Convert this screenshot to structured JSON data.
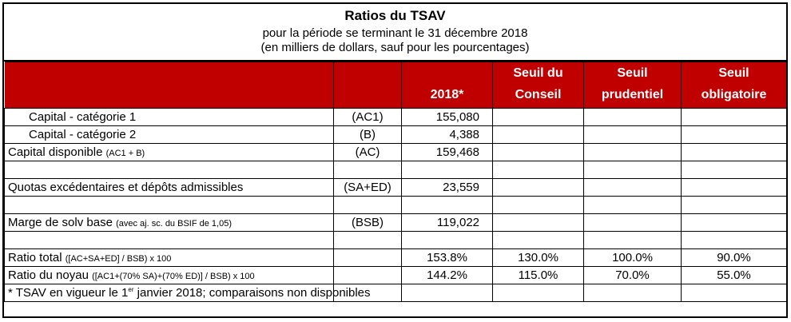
{
  "title": "Ratios du TSAV",
  "subtitle1": "pour la période se terminant le 31 décembre 2018",
  "subtitle2": "(en milliers de dollars, sauf pour les pourcentages)",
  "header": {
    "col_2018": "2018*",
    "seuil_conseil_1": "Seuil du",
    "seuil_conseil_2": "Conseil",
    "seuil_prudentiel_1": "Seuil",
    "seuil_prudentiel_2": "prudentiel",
    "seuil_obligatoire_1": "Seuil",
    "seuil_obligatoire_2": "obligatoire"
  },
  "rows": {
    "ac1": {
      "label": "Capital - catégorie 1",
      "code": "(AC1)",
      "value": "155,080"
    },
    "b": {
      "label": "Capital - catégorie 2",
      "code": "(B)",
      "value": "4,388"
    },
    "ac": {
      "label": "Capital disponible",
      "note": "(AC1 + B)",
      "code": "(AC)",
      "value": "159,468"
    },
    "saed": {
      "label": "Quotas excédentaires et dépôts admissibles",
      "code": "(SA+ED)",
      "value": "23,559"
    },
    "bsb": {
      "label": "Marge de solv base",
      "note": "(avec aj. sc. du BSIF de 1,05)",
      "code": "(BSB)",
      "value": "119,022"
    },
    "ratio_total": {
      "label": "Ratio total",
      "note": "([AC+SA+ED] / BSB) x 100",
      "value": "153.8%",
      "conseil": "130.0%",
      "prudentiel": "100.0%",
      "obligatoire": "90.0%"
    },
    "ratio_noyau": {
      "label": "Ratio du noyau",
      "note": "([AC1+(70% SA)+(70% ED)] / BSB) x 100",
      "value": "144.2%",
      "conseil": "115.0%",
      "prudentiel": "70.0%",
      "obligatoire": "55.0%"
    }
  },
  "footnote": {
    "pre": "* TSAV en vigueur le 1",
    "sup": "er",
    "post": " janvier 2018; comparaisons non disponibles"
  }
}
